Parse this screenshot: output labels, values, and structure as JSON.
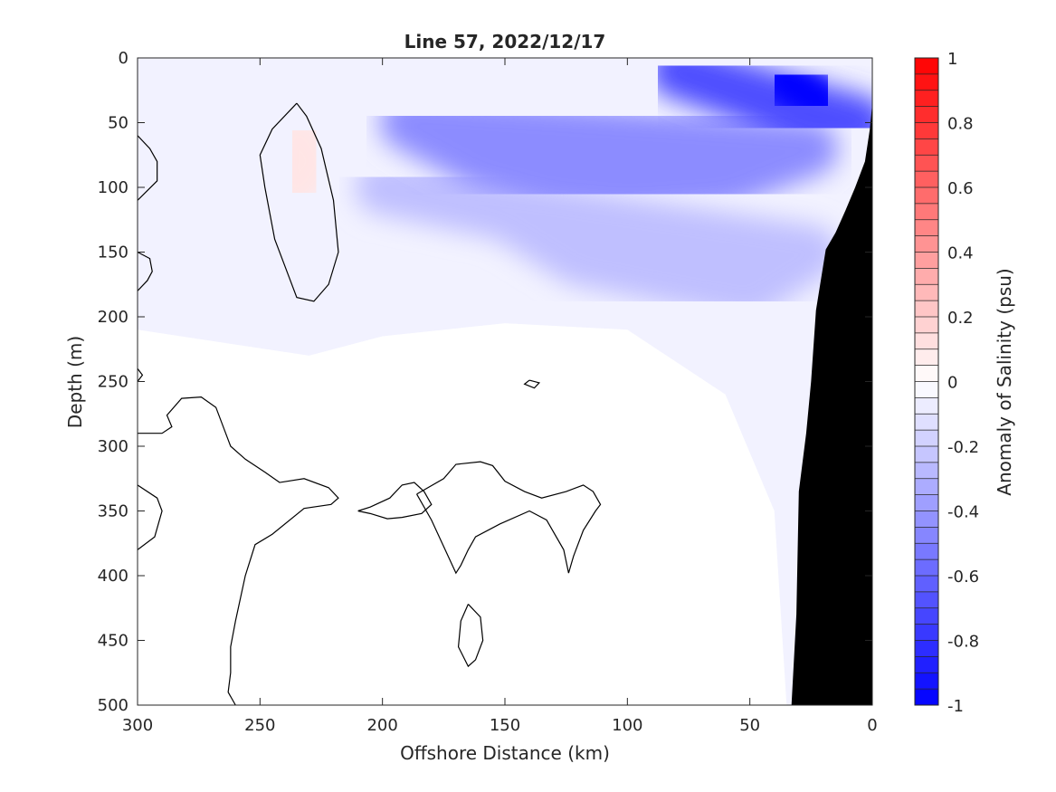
{
  "chart_data": {
    "type": "heatmap",
    "title": "Line 57, 2022/12/17",
    "xlabel": "Offshore Distance (km)",
    "ylabel": "Depth (m)",
    "xlim": [
      300,
      0
    ],
    "ylim": [
      0,
      500
    ],
    "x_reversed": true,
    "y_reversed": true,
    "x_ticks": [
      300,
      250,
      200,
      150,
      100,
      50,
      0
    ],
    "y_ticks": [
      0,
      50,
      100,
      150,
      200,
      250,
      300,
      350,
      400,
      450,
      500
    ],
    "colorbar": {
      "label": "Anomaly of Salinity (psu)",
      "range": [
        -1,
        1
      ],
      "ticks": [
        1,
        0.8,
        0.6,
        0.4,
        0.2,
        0,
        -0.2,
        -0.4,
        -0.6,
        -0.8,
        -1
      ],
      "tick_labels": [
        "1",
        "0.8",
        "0.6",
        "0.4",
        "0.2",
        "0",
        "-0.2",
        "-0.4",
        "-0.6",
        "-0.8",
        "-1"
      ],
      "levels": 40,
      "colormap": "blue-white-red",
      "low_color": "#0000ff",
      "high_color": "#ff0000",
      "mid_color": "#ffffff"
    },
    "bathymetry_color": "#000000",
    "bathymetry": {
      "x": [
        33,
        31,
        29,
        27,
        25,
        23,
        21,
        19,
        0,
        0,
        3,
        7,
        11,
        15,
        19,
        23,
        27,
        31,
        33
      ],
      "y": [
        500,
        430,
        335,
        290,
        250,
        200,
        190,
        150,
        0,
        35,
        70,
        100,
        120,
        135,
        148,
        150,
        170,
        190,
        200
      ]
    },
    "anomaly_regions": [
      {
        "value": -0.05,
        "x": [
          300,
          300,
          230,
          200,
          150,
          100,
          60,
          40,
          35
        ],
        "y": [
          0,
          210,
          230,
          215,
          205,
          210,
          260,
          350,
          500
        ]
      },
      {
        "value": -0.25,
        "x": [
          200,
          150,
          120,
          80,
          50,
          25
        ],
        "y": [
          100,
          120,
          155,
          170,
          180,
          150
        ]
      },
      {
        "value": -0.45,
        "x": [
          190,
          160,
          130,
          100,
          60,
          25
        ],
        "y": [
          50,
          80,
          95,
          100,
          95,
          70
        ]
      },
      {
        "value": -0.7,
        "x": [
          80,
          50,
          25,
          5
        ],
        "y": [
          10,
          30,
          50,
          50
        ]
      },
      {
        "value": -1.0,
        "x": [
          38,
          28,
          20
        ],
        "y": [
          15,
          25,
          35
        ]
      },
      {
        "value": 0.1,
        "x": [
          235,
          228,
          236
        ],
        "y": [
          60,
          80,
          100
        ]
      }
    ],
    "zero_contours": [
      {
        "x": [
          235,
          245,
          250,
          248,
          244,
          240,
          235,
          228,
          222,
          218,
          220,
          225,
          231,
          235
        ],
        "y": [
          35,
          55,
          75,
          100,
          140,
          160,
          185,
          188,
          175,
          150,
          110,
          70,
          45,
          35
        ]
      },
      {
        "x": [
          300,
          295,
          292,
          292,
          300
        ],
        "y": [
          60,
          70,
          80,
          95,
          110
        ]
      },
      {
        "x": [
          300,
          295,
          294,
          296,
          300
        ],
        "y": [
          150,
          155,
          165,
          172,
          180
        ]
      },
      {
        "x": [
          300,
          298,
          300
        ],
        "y": [
          240,
          245,
          250
        ]
      },
      {
        "x": [
          300,
          290,
          286,
          288,
          282,
          274,
          268,
          262,
          256,
          248,
          242,
          232,
          222,
          218,
          221,
          232,
          245,
          252,
          254,
          256,
          260,
          262,
          262,
          263,
          260
        ],
        "y": [
          290,
          290,
          285,
          276,
          263,
          262,
          270,
          300,
          310,
          320,
          328,
          325,
          332,
          340,
          345,
          348,
          368,
          376,
          388,
          400,
          435,
          455,
          475,
          490,
          500
        ]
      },
      {
        "x": [
          300,
          292,
          290,
          293,
          300
        ],
        "y": [
          330,
          340,
          350,
          370,
          380
        ]
      },
      {
        "x": [
          210,
          205,
          197,
          192,
          187,
          183,
          180,
          184,
          192,
          198,
          205,
          210
        ],
        "y": [
          350,
          347,
          340,
          330,
          328,
          335,
          345,
          352,
          355,
          356,
          352,
          350
        ]
      },
      {
        "x": [
          186,
          175,
          170,
          160,
          155,
          150,
          142,
          135,
          125,
          118,
          114,
          111,
          113,
          118,
          122,
          124,
          126,
          133,
          140,
          152,
          162,
          165,
          168,
          170,
          180,
          186
        ],
        "y": [
          337,
          325,
          314,
          312,
          315,
          327,
          335,
          340,
          335,
          330,
          335,
          345,
          350,
          365,
          385,
          398,
          380,
          357,
          350,
          360,
          370,
          380,
          392,
          398,
          357,
          337
        ]
      },
      {
        "x": [
          140,
          136,
          138,
          142,
          140
        ],
        "y": [
          249,
          251,
          255,
          252,
          249
        ]
      },
      {
        "x": [
          165,
          160,
          159,
          162,
          165,
          169,
          168,
          165
        ],
        "y": [
          422,
          432,
          450,
          465,
          470,
          455,
          435,
          422
        ]
      }
    ]
  }
}
